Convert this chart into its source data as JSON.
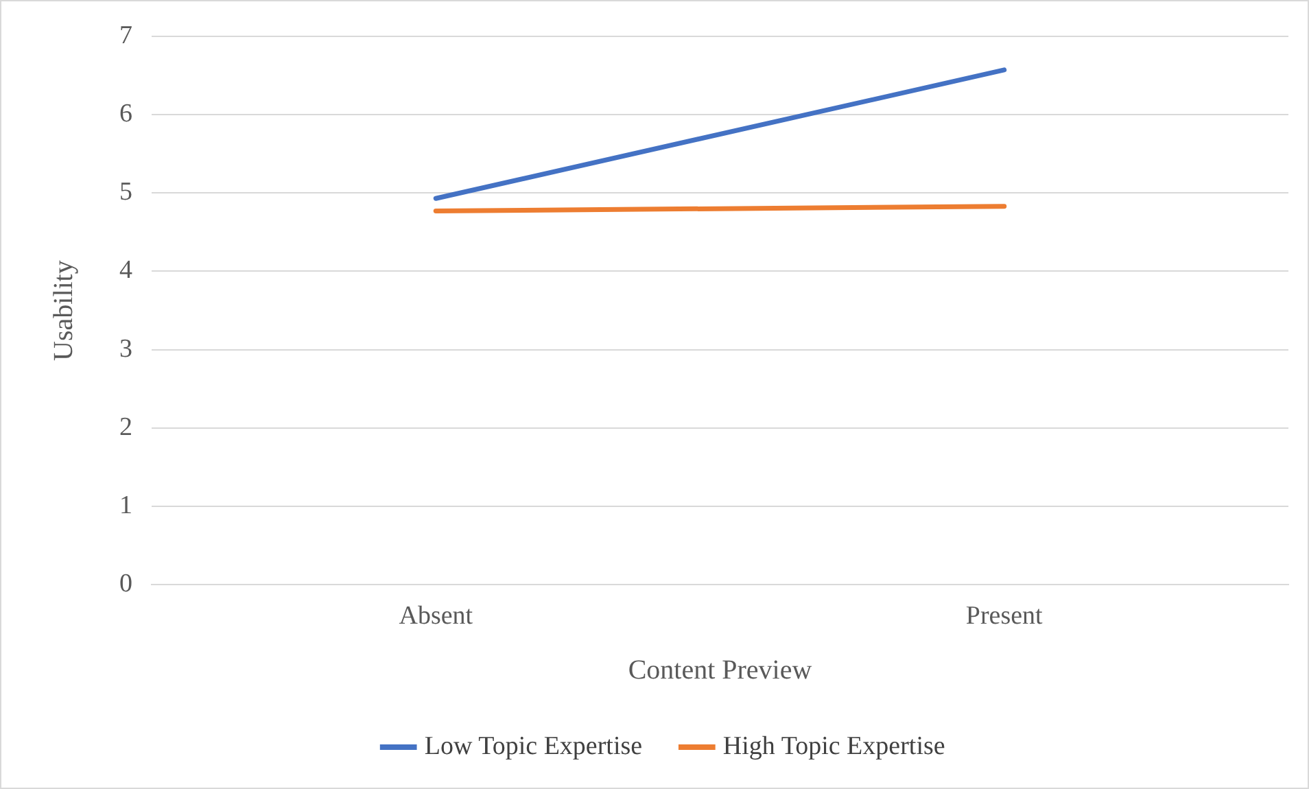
{
  "chart_data": {
    "type": "line",
    "xlabel": "Content Preview",
    "ylabel": "Usability",
    "categories": [
      "Absent",
      "Present"
    ],
    "series": [
      {
        "name": "Low Topic Expertise",
        "color": "#4472c4",
        "values": [
          4.93,
          6.57
        ]
      },
      {
        "name": "High Topic Expertise",
        "color": "#ed7d31",
        "values": [
          4.77,
          4.83
        ]
      }
    ],
    "ylim": [
      0,
      7
    ],
    "yticks": [
      0,
      1,
      2,
      3,
      4,
      5,
      6,
      7
    ],
    "grid": "y",
    "legend": "bottom",
    "marker": "none",
    "line_style": "solid"
  }
}
